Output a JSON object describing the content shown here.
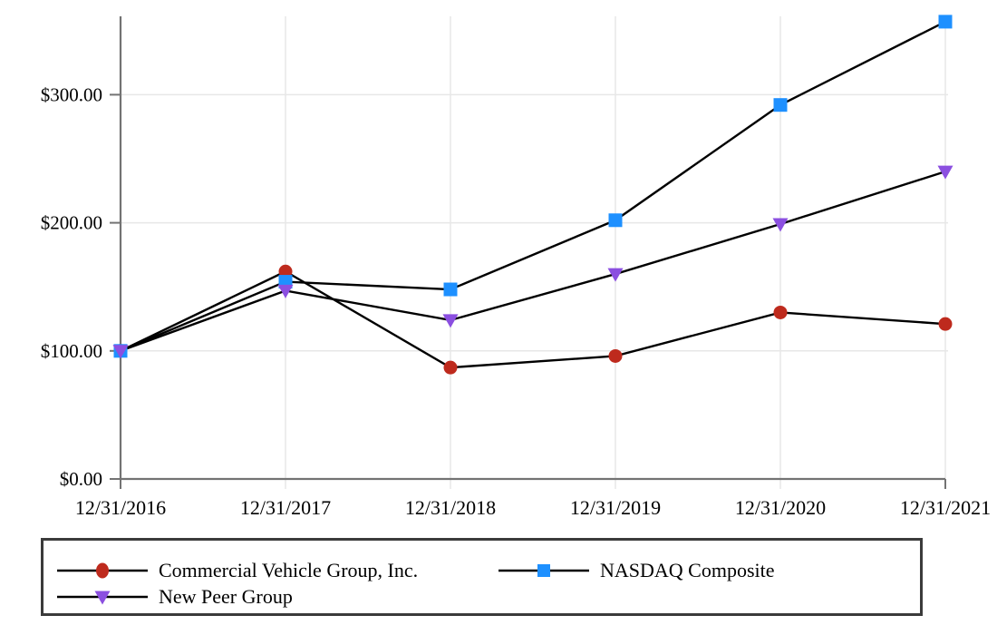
{
  "chart_data": {
    "type": "line",
    "title": "",
    "xlabel": "",
    "ylabel": "",
    "categories": [
      "12/31/2016",
      "12/31/2017",
      "12/31/2018",
      "12/31/2019",
      "12/31/2020",
      "12/31/2021"
    ],
    "series": [
      {
        "name": "Commercial Vehicle Group, Inc.",
        "marker": "circle",
        "color": "#be2a1d",
        "values": [
          100,
          162,
          87,
          96,
          130,
          121
        ]
      },
      {
        "name": "NASDAQ Composite",
        "marker": "square",
        "color": "#1e90ff",
        "values": [
          100,
          154,
          148,
          202,
          292,
          357
        ]
      },
      {
        "name": "New Peer Group",
        "marker": "triangle-down",
        "color": "#8b4fe0",
        "values": [
          100,
          147,
          124,
          160,
          199,
          240
        ]
      }
    ],
    "yticks": [
      {
        "value": 0,
        "label": "$0.00"
      },
      {
        "value": 100,
        "label": "$100.00"
      },
      {
        "value": 200,
        "label": "$200.00"
      },
      {
        "value": 300,
        "label": "$300.00"
      }
    ],
    "ylim": [
      0,
      360
    ],
    "grid": true,
    "legend_position": "bottom",
    "line_color": "#000000",
    "axis_color": "#737373",
    "gridline_color": "#e7e7e7"
  }
}
